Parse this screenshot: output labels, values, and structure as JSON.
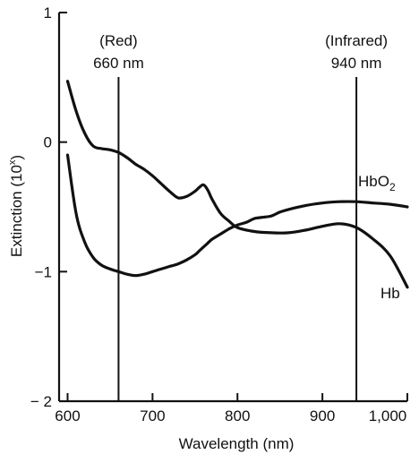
{
  "chart_data": {
    "type": "line",
    "xlabel": "Wavelength (nm)",
    "ylabel": "Extinction (10",
    "ylabel_superscript": "x",
    "ylabel_close": ")",
    "xlim": [
      590,
      1000
    ],
    "ylim": [
      -2,
      1
    ],
    "x_ticks": [
      {
        "value": 600,
        "label": "600"
      },
      {
        "value": 700,
        "label": "700"
      },
      {
        "value": 800,
        "label": "800"
      },
      {
        "value": 900,
        "label": "900"
      },
      {
        "value": 1000,
        "label": "1,000"
      }
    ],
    "y_ticks": [
      {
        "value": 1,
        "label": "1"
      },
      {
        "value": 0,
        "label": "0"
      },
      {
        "value": -1,
        "label": "−1"
      },
      {
        "value": -2,
        "label": "− 2"
      }
    ],
    "markers": [
      {
        "x": 660,
        "label_top": "(Red)",
        "label_bottom": "660 nm"
      },
      {
        "x": 940,
        "label_top": "(Infrared)",
        "label_bottom": "940 nm"
      }
    ],
    "series": [
      {
        "name": "HbO",
        "name_subscript": "2",
        "x": [
          600,
          610,
          620,
          630,
          640,
          650,
          660,
          670,
          680,
          690,
          700,
          710,
          720,
          730,
          740,
          750,
          755,
          760,
          765,
          770,
          780,
          790,
          800,
          810,
          820,
          830,
          840,
          850,
          860,
          880,
          900,
          920,
          940,
          960,
          980,
          1000
        ],
        "values": [
          -0.1,
          -0.55,
          -0.77,
          -0.89,
          -0.95,
          -0.98,
          -1.0,
          -1.02,
          -1.03,
          -1.02,
          -1.0,
          -0.98,
          -0.96,
          -0.94,
          -0.91,
          -0.87,
          -0.84,
          -0.81,
          -0.78,
          -0.75,
          -0.71,
          -0.67,
          -0.64,
          -0.62,
          -0.59,
          -0.58,
          -0.57,
          -0.54,
          -0.52,
          -0.49,
          -0.47,
          -0.46,
          -0.46,
          -0.47,
          -0.48,
          -0.5
        ]
      },
      {
        "name": "Hb",
        "x": [
          600,
          610,
          620,
          630,
          640,
          650,
          660,
          670,
          680,
          690,
          700,
          710,
          720,
          730,
          740,
          750,
          755,
          760,
          765,
          770,
          780,
          790,
          800,
          820,
          840,
          860,
          880,
          900,
          920,
          940,
          960,
          980,
          1000
        ],
        "values": [
          0.47,
          0.24,
          0.07,
          -0.03,
          -0.05,
          -0.06,
          -0.08,
          -0.12,
          -0.17,
          -0.21,
          -0.26,
          -0.32,
          -0.38,
          -0.43,
          -0.42,
          -0.38,
          -0.35,
          -0.33,
          -0.37,
          -0.44,
          -0.55,
          -0.61,
          -0.66,
          -0.69,
          -0.7,
          -0.7,
          -0.68,
          -0.65,
          -0.63,
          -0.66,
          -0.75,
          -0.88,
          -1.12
        ]
      }
    ]
  }
}
